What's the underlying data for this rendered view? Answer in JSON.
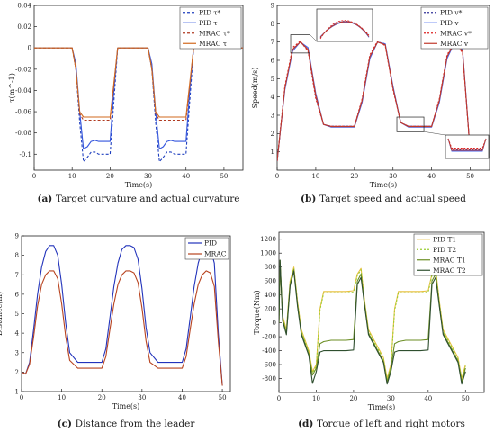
{
  "chart_data": [
    {
      "type": "line",
      "caption_letter": "(a)",
      "caption": "Target curvature and actual curvature",
      "xlabel": "Time(s)",
      "ylabel": "τ(m^-1)",
      "xlim": [
        0,
        55
      ],
      "ylim": [
        -0.115,
        0.04
      ],
      "xticks": [
        0,
        10,
        20,
        30,
        40,
        50
      ],
      "yticks": [
        0.04,
        0.02,
        0,
        -0.02,
        -0.04,
        -0.06,
        -0.08,
        -0.1
      ],
      "ytick_labels": [
        "0.04",
        "0.02",
        "0",
        "-0.02",
        "-0.04",
        "-0.06",
        "-0.08",
        "-0.1"
      ],
      "grid": false,
      "legend": "top-right",
      "series": [
        {
          "name": "PID τ*",
          "color": "#1f3fbf",
          "dash": "3,2",
          "x": [
            0,
            10,
            11,
            12,
            13,
            14,
            15,
            16,
            17,
            18,
            19,
            20,
            21,
            22,
            25,
            30,
            31,
            32,
            33,
            34,
            35,
            36,
            37,
            38,
            39,
            40,
            41,
            42,
            55
          ],
          "y": [
            0,
            0,
            -0.02,
            -0.07,
            -0.107,
            -0.103,
            -0.098,
            -0.098,
            -0.1,
            -0.1,
            -0.1,
            -0.1,
            -0.05,
            0,
            0,
            0,
            -0.02,
            -0.07,
            -0.107,
            -0.103,
            -0.098,
            -0.098,
            -0.1,
            -0.1,
            -0.1,
            -0.1,
            -0.05,
            0,
            0
          ]
        },
        {
          "name": "PID τ",
          "color": "#3355dd",
          "dash": "",
          "x": [
            0,
            10,
            11,
            12,
            13,
            14,
            15,
            16,
            17,
            18,
            19,
            20,
            21,
            22,
            25,
            30,
            31,
            32,
            33,
            34,
            35,
            36,
            37,
            38,
            39,
            40,
            41,
            42,
            55
          ],
          "y": [
            0,
            0,
            -0.015,
            -0.06,
            -0.095,
            -0.093,
            -0.088,
            -0.087,
            -0.088,
            -0.088,
            -0.088,
            -0.088,
            -0.04,
            0,
            0,
            0,
            -0.015,
            -0.06,
            -0.095,
            -0.093,
            -0.088,
            -0.087,
            -0.088,
            -0.088,
            -0.088,
            -0.088,
            -0.04,
            0,
            0
          ]
        },
        {
          "name": "MRAC τ*",
          "color": "#b03a20",
          "dash": "3,2",
          "x": [
            0,
            10,
            11,
            12,
            13,
            15,
            18,
            20,
            21,
            22,
            25,
            30,
            31,
            32,
            33,
            35,
            38,
            40,
            41,
            42,
            55
          ],
          "y": [
            0,
            0,
            -0.02,
            -0.062,
            -0.068,
            -0.068,
            -0.068,
            -0.068,
            -0.035,
            0,
            0,
            0,
            -0.02,
            -0.062,
            -0.068,
            -0.068,
            -0.068,
            -0.068,
            -0.035,
            0,
            0
          ]
        },
        {
          "name": "MRAC τ",
          "color": "#d2691e",
          "dash": "",
          "x": [
            0,
            10,
            11,
            12,
            13,
            15,
            18,
            20,
            21,
            22,
            25,
            30,
            31,
            32,
            33,
            35,
            38,
            40,
            41,
            42,
            55
          ],
          "y": [
            0,
            0,
            -0.02,
            -0.06,
            -0.065,
            -0.065,
            -0.065,
            -0.065,
            -0.033,
            0,
            0,
            0,
            -0.02,
            -0.06,
            -0.065,
            -0.065,
            -0.065,
            -0.065,
            -0.033,
            0,
            0
          ]
        }
      ]
    },
    {
      "type": "line",
      "caption_letter": "(b)",
      "caption": "Target speed and actual speed",
      "xlabel": "Time(s)",
      "ylabel": "Speed(m/s)",
      "xlim": [
        0,
        55
      ],
      "ylim": [
        0,
        9
      ],
      "xticks": [
        0,
        10,
        20,
        30,
        40,
        50
      ],
      "yticks": [
        1,
        2,
        3,
        4,
        5,
        6,
        7,
        8,
        9
      ],
      "grid": false,
      "legend": "top-right",
      "series": [
        {
          "name": "PID v*",
          "color": "#333399",
          "dash": "2,2",
          "x": [
            0,
            2,
            4,
            6,
            8,
            10,
            12,
            14,
            16,
            20,
            22,
            24,
            26,
            28,
            30,
            32,
            34,
            36,
            40,
            42,
            44,
            46,
            48,
            50
          ],
          "y": [
            0.5,
            4.5,
            6.6,
            7.0,
            6.6,
            4.0,
            2.5,
            2.4,
            2.4,
            2.4,
            3.8,
            6.2,
            7.0,
            6.9,
            4.5,
            2.6,
            2.4,
            2.4,
            2.4,
            3.8,
            6.2,
            7.0,
            6.5,
            1.0
          ]
        },
        {
          "name": "PID v",
          "color": "#4466ee",
          "dash": "",
          "x": [
            0,
            2,
            4,
            6,
            8,
            10,
            12,
            14,
            16,
            20,
            22,
            24,
            26,
            28,
            30,
            32,
            34,
            36,
            40,
            42,
            44,
            46,
            48,
            50
          ],
          "y": [
            0.5,
            4.4,
            6.5,
            7.0,
            6.7,
            4.2,
            2.5,
            2.35,
            2.35,
            2.35,
            3.7,
            6.1,
            7.0,
            6.9,
            4.6,
            2.6,
            2.35,
            2.35,
            2.35,
            3.7,
            6.1,
            7.0,
            6.6,
            1.0
          ]
        },
        {
          "name": "MRAC v*",
          "color": "#dd2222",
          "dash": "2,2",
          "x": [
            0,
            2,
            4,
            6,
            8,
            10,
            12,
            14,
            16,
            20,
            22,
            24,
            26,
            28,
            30,
            32,
            34,
            36,
            40,
            42,
            44,
            46,
            48,
            50
          ],
          "y": [
            0.5,
            4.6,
            6.7,
            7.05,
            6.5,
            3.9,
            2.5,
            2.4,
            2.4,
            2.4,
            3.9,
            6.3,
            7.05,
            6.8,
            4.4,
            2.6,
            2.4,
            2.4,
            2.4,
            3.9,
            6.3,
            7.05,
            6.4,
            1.0
          ]
        },
        {
          "name": "MRAC v",
          "color": "#c0392b",
          "dash": "",
          "x": [
            0,
            2,
            4,
            6,
            8,
            10,
            12,
            14,
            16,
            20,
            22,
            24,
            26,
            28,
            30,
            32,
            34,
            36,
            40,
            42,
            44,
            46,
            48,
            50
          ],
          "y": [
            0.5,
            4.5,
            6.6,
            7.0,
            6.6,
            4.1,
            2.5,
            2.38,
            2.38,
            2.38,
            3.8,
            6.2,
            7.0,
            6.85,
            4.5,
            2.6,
            2.38,
            2.38,
            2.38,
            3.8,
            6.2,
            7.0,
            6.5,
            1.0
          ]
        }
      ]
    },
    {
      "type": "line",
      "caption_letter": "(c)",
      "caption": "Distance from the leader",
      "xlabel": "Time(s)",
      "ylabel": "Distance(m)",
      "xlim": [
        0,
        52
      ],
      "ylim": [
        1,
        9
      ],
      "xticks": [
        0,
        10,
        20,
        30,
        40,
        50
      ],
      "yticks": [
        1,
        2,
        3,
        4,
        5,
        6,
        7,
        8,
        9
      ],
      "grid": false,
      "legend": "top-right",
      "series": [
        {
          "name": "PID",
          "color": "#2233bb",
          "dash": "",
          "x": [
            0,
            1,
            2,
            3,
            4,
            5,
            6,
            7,
            8,
            9,
            10,
            11,
            12,
            14,
            18,
            20,
            21,
            22,
            23,
            24,
            25,
            26,
            27,
            28,
            29,
            30,
            31,
            32,
            34,
            38,
            40,
            41,
            42,
            43,
            44,
            45,
            46,
            47,
            48,
            49,
            50
          ],
          "y": [
            2.0,
            1.9,
            2.5,
            4.2,
            6.0,
            7.4,
            8.2,
            8.5,
            8.5,
            8.0,
            6.5,
            4.5,
            3.0,
            2.5,
            2.5,
            2.5,
            3.2,
            4.8,
            6.4,
            7.6,
            8.3,
            8.5,
            8.5,
            8.4,
            7.8,
            6.3,
            4.3,
            3.0,
            2.5,
            2.5,
            2.5,
            3.2,
            4.8,
            6.4,
            7.6,
            8.3,
            8.5,
            8.4,
            7.6,
            4.0,
            1.3
          ]
        },
        {
          "name": "MRAC",
          "color": "#b8431f",
          "dash": "",
          "x": [
            0,
            1,
            2,
            3,
            4,
            5,
            6,
            7,
            8,
            9,
            10,
            11,
            12,
            14,
            18,
            20,
            21,
            22,
            23,
            24,
            25,
            26,
            27,
            28,
            29,
            30,
            31,
            32,
            34,
            38,
            40,
            41,
            42,
            43,
            44,
            45,
            46,
            47,
            48,
            49,
            50
          ],
          "y": [
            2.0,
            1.9,
            2.4,
            3.8,
            5.4,
            6.5,
            7.0,
            7.2,
            7.2,
            6.8,
            5.5,
            3.8,
            2.6,
            2.2,
            2.2,
            2.2,
            2.8,
            4.2,
            5.5,
            6.5,
            7.0,
            7.2,
            7.2,
            7.1,
            6.6,
            5.3,
            3.6,
            2.5,
            2.2,
            2.2,
            2.2,
            2.8,
            4.2,
            5.5,
            6.5,
            7.0,
            7.2,
            7.1,
            6.4,
            3.6,
            1.3
          ]
        }
      ]
    },
    {
      "type": "line",
      "caption_letter": "(d)",
      "caption": "Torque of left and right motors",
      "xlabel": "Time(s)",
      "ylabel": "Torque(Nm)",
      "xlim": [
        0,
        55
      ],
      "ylim": [
        -1000,
        1300
      ],
      "xticks": [
        0,
        10,
        20,
        30,
        40,
        50
      ],
      "yticks": [
        1200,
        1000,
        800,
        600,
        400,
        200,
        0,
        -200,
        -400,
        -600,
        -800
      ],
      "grid": false,
      "legend": "top-right",
      "series": [
        {
          "name": "PID T1",
          "color": "#e8c040",
          "dash": "",
          "x": [
            0,
            0.3,
            1,
            2,
            3,
            4,
            5,
            6,
            8,
            9,
            10,
            11,
            12,
            14,
            18,
            20,
            21,
            22,
            23,
            24,
            26,
            28,
            29,
            30,
            31,
            32,
            34,
            38,
            40,
            41,
            42,
            43,
            44,
            46,
            48,
            49,
            50
          ],
          "y": [
            0,
            880,
            100,
            -100,
            600,
            800,
            300,
            -100,
            -400,
            -700,
            -600,
            200,
            450,
            450,
            450,
            460,
            700,
            780,
            300,
            -100,
            -300,
            -500,
            -800,
            -600,
            200,
            450,
            450,
            450,
            460,
            700,
            780,
            300,
            -100,
            -300,
            -500,
            -800,
            -600
          ]
        },
        {
          "name": "PID T2",
          "color": "#9acd32",
          "dash": "2,2",
          "x": [
            0,
            0.3,
            1,
            2,
            3,
            4,
            5,
            6,
            8,
            9,
            10,
            11,
            12,
            14,
            18,
            20,
            21,
            22,
            23,
            24,
            26,
            28,
            29,
            30,
            31,
            32,
            34,
            38,
            40,
            41,
            42,
            43,
            44,
            46,
            48,
            49,
            50
          ],
          "y": [
            0,
            850,
            80,
            -120,
            580,
            780,
            280,
            -120,
            -420,
            -720,
            -620,
            180,
            430,
            430,
            430,
            440,
            680,
            760,
            280,
            -120,
            -320,
            -520,
            -820,
            -620,
            180,
            430,
            430,
            430,
            440,
            680,
            760,
            280,
            -120,
            -320,
            -520,
            -820,
            -620
          ]
        },
        {
          "name": "MRAC T1",
          "color": "#6b8e23",
          "dash": "",
          "x": [
            0,
            0.3,
            1,
            2,
            3,
            4,
            5,
            6,
            8,
            9,
            10,
            11,
            12,
            14,
            18,
            20,
            21,
            22,
            23,
            24,
            26,
            28,
            29,
            30,
            31,
            32,
            34,
            38,
            40,
            41,
            42,
            43,
            44,
            46,
            48,
            49,
            50
          ],
          "y": [
            0,
            900,
            50,
            -150,
            550,
            760,
            250,
            -150,
            -450,
            -750,
            -650,
            -300,
            -270,
            -250,
            -250,
            -240,
            600,
            700,
            250,
            -150,
            -350,
            -550,
            -850,
            -650,
            -300,
            -270,
            -250,
            -250,
            -240,
            600,
            700,
            250,
            -150,
            -350,
            -550,
            -850,
            -650
          ]
        },
        {
          "name": "MRAC T2",
          "color": "#2f4f2f",
          "dash": "",
          "x": [
            0,
            0.3,
            1,
            2,
            3,
            4,
            5,
            6,
            8,
            9,
            10,
            11,
            12,
            14,
            18,
            20,
            21,
            22,
            23,
            24,
            26,
            28,
            29,
            30,
            31,
            32,
            34,
            38,
            40,
            41,
            42,
            43,
            44,
            46,
            48,
            49,
            50
          ],
          "y": [
            0,
            900,
            30,
            -170,
            530,
            740,
            230,
            -170,
            -470,
            -870,
            -700,
            -420,
            -400,
            -400,
            -400,
            -390,
            550,
            650,
            230,
            -170,
            -370,
            -570,
            -880,
            -700,
            -420,
            -400,
            -400,
            -400,
            -390,
            550,
            650,
            230,
            -170,
            -370,
            -570,
            -880,
            -700
          ]
        }
      ]
    }
  ]
}
